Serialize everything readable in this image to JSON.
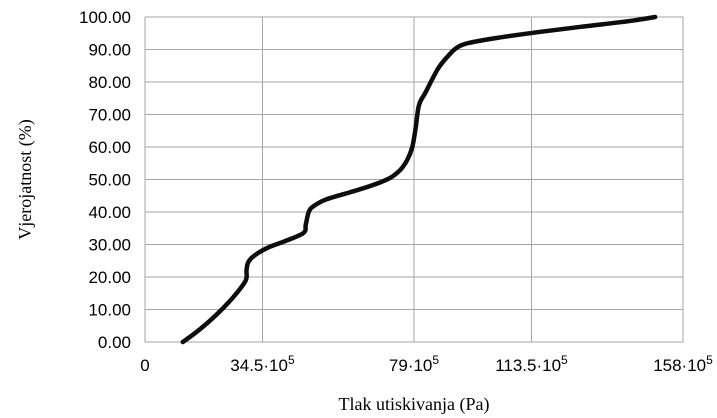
{
  "chart_data": {
    "type": "line",
    "title": "",
    "xlabel": "Tlak utiskivanja (Pa)",
    "ylabel": "Vjerojatnost (%)",
    "xlim": [
      0,
      158
    ],
    "ylim": [
      0,
      100
    ],
    "x_unit_note": "x values in units of 10^5 Pa",
    "y_ticks": [
      "0.00",
      "10.00",
      "20.00",
      "30.00",
      "40.00",
      "50.00",
      "60.00",
      "70.00",
      "80.00",
      "90.00",
      "100.00"
    ],
    "y_tick_values": [
      0,
      10,
      20,
      30,
      40,
      50,
      60,
      70,
      80,
      90,
      100
    ],
    "x_ticks": [
      {
        "value": 0,
        "mant": "0",
        "exp": ""
      },
      {
        "value": 34.5,
        "mant": "34.5·10",
        "exp": "5"
      },
      {
        "value": 79,
        "mant": "79·10",
        "exp": "5"
      },
      {
        "value": 113.5,
        "mant": "113.5·10",
        "exp": "5"
      },
      {
        "value": 158,
        "mant": "158·10",
        "exp": "5"
      }
    ],
    "grid": true,
    "series": [
      {
        "color": "#0d0d0d",
        "x": [
          11.1,
          15,
          19,
          23,
          26.5,
          29.6,
          29.8,
          30.3,
          32,
          36,
          41,
          46.5,
          47.2,
          47.7,
          48.3,
          49.5,
          53,
          60,
          67,
          72,
          75,
          77,
          78.5,
          79.5,
          80.5,
          82.5,
          86,
          89,
          91.5,
          95,
          103,
          115,
          128,
          142,
          149.8
        ],
        "y": [
          0,
          3,
          6.5,
          10.5,
          14.5,
          19,
          22,
          24.5,
          26.5,
          29,
          31,
          33.5,
          36,
          38.5,
          40.5,
          41.8,
          43.8,
          46,
          48.3,
          50.5,
          53,
          56,
          60,
          66,
          73,
          77,
          84,
          88,
          90.5,
          92,
          93.5,
          95.3,
          97,
          98.7,
          100
        ]
      }
    ]
  }
}
